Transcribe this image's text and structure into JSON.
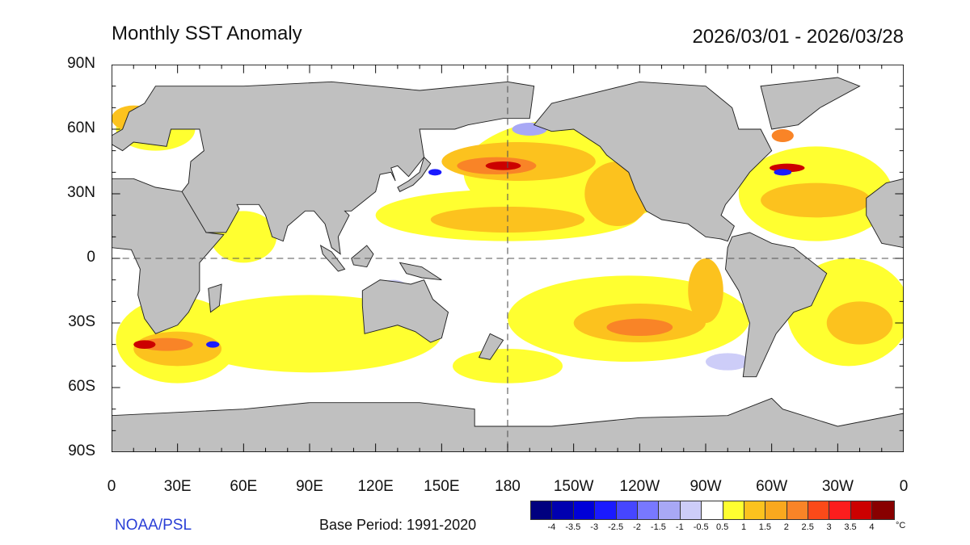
{
  "header": {
    "title": "Monthly SST Anomaly",
    "date_range": "2026/03/01 - 2026/03/28"
  },
  "axes": {
    "lat_labels": [
      "90N",
      "60N",
      "30N",
      "0",
      "30S",
      "60S",
      "90S"
    ],
    "lon_labels": [
      "0",
      "30E",
      "60E",
      "90E",
      "120E",
      "150E",
      "180",
      "150W",
      "120W",
      "90W",
      "60W",
      "30W",
      "0"
    ]
  },
  "footer": {
    "source": "NOAA/PSL",
    "base_period": "Base Period: 1991-2020"
  },
  "colorbar": {
    "unit": "°C",
    "labels": [
      "-4",
      "-3.5",
      "-3",
      "-2.5",
      "-2",
      "-1.5",
      "-1",
      "-0.5",
      "0.5",
      "1",
      "1.5",
      "2",
      "2.5",
      "3",
      "3.5",
      "4"
    ],
    "colors": [
      "#00007f",
      "#0000b0",
      "#0000d8",
      "#1a1aff",
      "#4646ff",
      "#7878ff",
      "#a8a8f5",
      "#cdcdf8",
      "#ffffff",
      "#ffff30",
      "#fcc21e",
      "#f9a81e",
      "#f98427",
      "#fb4a19",
      "#fc1d1d",
      "#cc0000",
      "#880000"
    ]
  },
  "map_colors": {
    "land": "#c0c0c0",
    "ocean": "#ffffff"
  }
}
